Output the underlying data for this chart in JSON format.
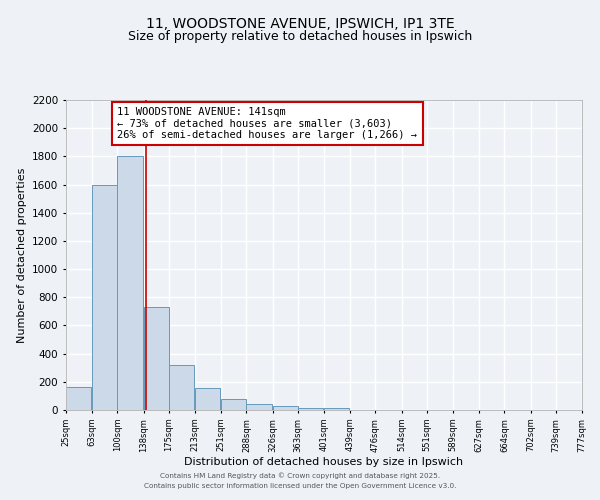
{
  "title": "11, WOODSTONE AVENUE, IPSWICH, IP1 3TE",
  "subtitle": "Size of property relative to detached houses in Ipswich",
  "bar_left_edges": [
    25,
    63,
    100,
    138,
    175,
    213,
    251,
    288,
    326,
    363,
    401,
    439,
    476,
    514,
    551,
    589,
    627,
    664,
    702,
    739
  ],
  "bar_heights": [
    160,
    1600,
    1800,
    730,
    320,
    155,
    80,
    40,
    25,
    15,
    15,
    0,
    0,
    0,
    0,
    0,
    0,
    0,
    0,
    0
  ],
  "bin_width": 37,
  "bar_color": "#ccd9e8",
  "bar_edge_color": "#6699bb",
  "vline_x": 141,
  "vline_color": "#cc0000",
  "xlim": [
    25,
    777
  ],
  "ylim": [
    0,
    2200
  ],
  "yticks": [
    0,
    200,
    400,
    600,
    800,
    1000,
    1200,
    1400,
    1600,
    1800,
    2000,
    2200
  ],
  "xtick_labels": [
    "25sqm",
    "63sqm",
    "100sqm",
    "138sqm",
    "175sqm",
    "213sqm",
    "251sqm",
    "288sqm",
    "326sqm",
    "363sqm",
    "401sqm",
    "439sqm",
    "476sqm",
    "514sqm",
    "551sqm",
    "589sqm",
    "627sqm",
    "664sqm",
    "702sqm",
    "739sqm",
    "777sqm"
  ],
  "xtick_positions": [
    25,
    63,
    100,
    138,
    175,
    213,
    251,
    288,
    326,
    363,
    401,
    439,
    476,
    514,
    551,
    589,
    627,
    664,
    702,
    739,
    777
  ],
  "xlabel": "Distribution of detached houses by size in Ipswich",
  "ylabel": "Number of detached properties",
  "annotation_title": "11 WOODSTONE AVENUE: 141sqm",
  "annotation_line1": "← 73% of detached houses are smaller (3,603)",
  "annotation_line2": "26% of semi-detached houses are larger (1,266) →",
  "footer_line1": "Contains HM Land Registry data © Crown copyright and database right 2025.",
  "footer_line2": "Contains public sector information licensed under the Open Government Licence v3.0.",
  "background_color": "#eef2f7",
  "plot_bg_color": "#eef2f7",
  "grid_color": "#ffffff",
  "title_fontsize": 10,
  "subtitle_fontsize": 9,
  "ylabel_fontsize": 8,
  "xlabel_fontsize": 8
}
